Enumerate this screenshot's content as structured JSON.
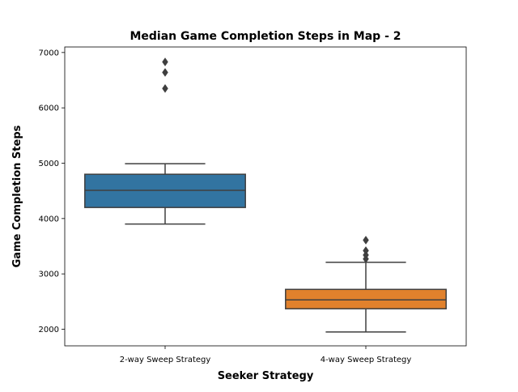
{
  "chart_data": {
    "type": "box",
    "title": "Median Game Completion Steps in Map - 2",
    "xlabel": "Seeker Strategy",
    "ylabel": "Game Completion Steps",
    "ylim": [
      1700,
      7100
    ],
    "yticks": [
      {
        "value": 2000,
        "label": "2000"
      },
      {
        "value": 3000,
        "label": "3000"
      },
      {
        "value": 4000,
        "label": "4000"
      },
      {
        "value": 5000,
        "label": "5000"
      },
      {
        "value": 6000,
        "label": "6000"
      },
      {
        "value": 7000,
        "label": "7000"
      }
    ],
    "grid": false,
    "categories": [
      "2-way Sweep Strategy",
      "4-way Sweep Strategy"
    ],
    "boxes": [
      {
        "category": "2-way Sweep Strategy",
        "color": "#3274a1",
        "whisker_low": 3900,
        "q1": 4200,
        "median": 4510,
        "q3": 4800,
        "whisker_high": 4990,
        "outliers": [
          6350,
          6640,
          6830
        ]
      },
      {
        "category": "4-way Sweep Strategy",
        "color": "#e1812c",
        "whisker_low": 1950,
        "q1": 2370,
        "median": 2530,
        "q3": 2720,
        "whisker_high": 3210,
        "outliers": [
          3270,
          3340,
          3420,
          3610
        ]
      }
    ]
  }
}
